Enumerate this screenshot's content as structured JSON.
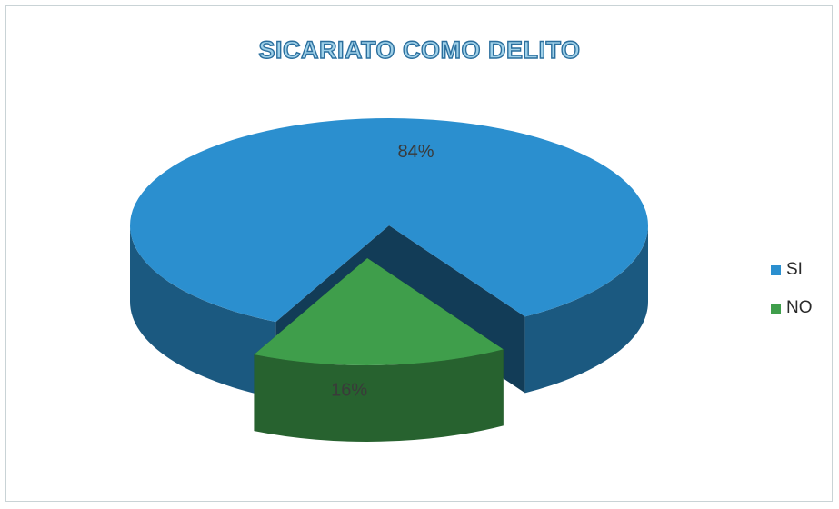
{
  "chart_data": {
    "type": "pie",
    "title": "SICARIATO COMO DELITO",
    "categories": [
      "SI",
      "NO"
    ],
    "values": [
      84,
      16
    ],
    "data_labels": [
      "84%",
      "16%"
    ],
    "colors": [
      "#2b8fcf",
      "#3f9e4b"
    ],
    "legend_position": "right",
    "exploded": "NO",
    "style": "3d"
  }
}
